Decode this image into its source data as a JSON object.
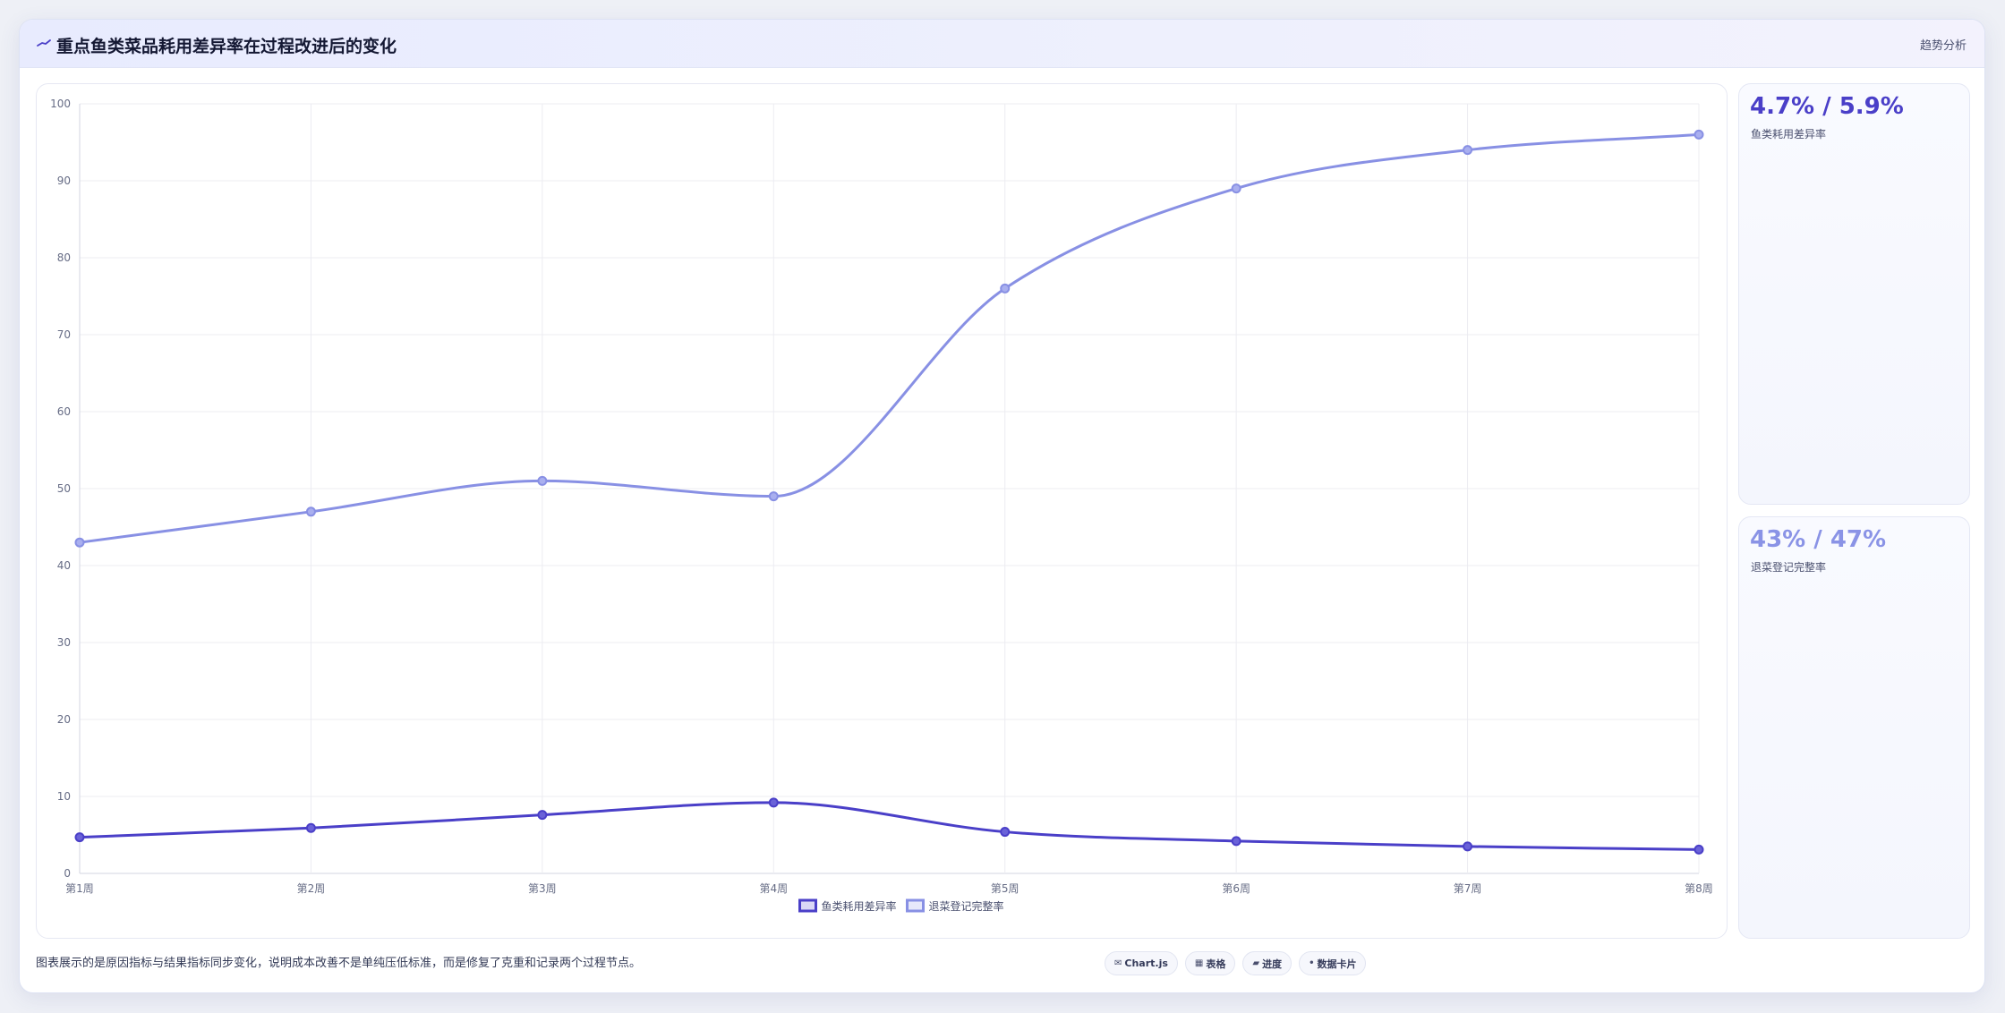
{
  "header": {
    "title": "重点鱼类菜品耗用差异率在过程改进后的变化",
    "badge": "趋势分析",
    "icon": "trend-line-icon"
  },
  "stats": [
    {
      "value": "4.7% / 5.9%",
      "label": "鱼类耗用差异率"
    },
    {
      "value": "43% / 47%",
      "label": "退菜登记完整率"
    }
  ],
  "caption": "图表展示的是原因指标与结果指标同步变化，说明成本改善不是单纯压低标准，而是修复了克重和记录两个过程节点。",
  "chips": [
    {
      "icon": "chart-icon",
      "glyph": "✉",
      "label": "Chart.js"
    },
    {
      "icon": "table-icon",
      "glyph": "▦",
      "label": "表格"
    },
    {
      "icon": "progress-icon",
      "glyph": "▰",
      "label": "进度"
    },
    {
      "icon": "data-card-icon",
      "glyph": "•",
      "label": "数据卡片"
    }
  ],
  "chart_data": {
    "type": "line",
    "categories": [
      "第1周",
      "第2周",
      "第3周",
      "第4周",
      "第5周",
      "第6周",
      "第7周",
      "第8周"
    ],
    "series": [
      {
        "name": "鱼类耗用差异率",
        "values": [
          4.7,
          5.9,
          7.6,
          9.2,
          5.4,
          4.2,
          3.5,
          3.1
        ],
        "color": "#4a3fc8"
      },
      {
        "name": "退菜登记完整率",
        "values": [
          43,
          47,
          51,
          49,
          76,
          89,
          94,
          96
        ],
        "color": "#8890e4"
      }
    ],
    "ylim": [
      0,
      100
    ],
    "yticks": [
      0,
      10,
      20,
      30,
      40,
      50,
      60,
      70,
      80,
      90,
      100
    ],
    "grid": true,
    "legend": "bottom"
  }
}
